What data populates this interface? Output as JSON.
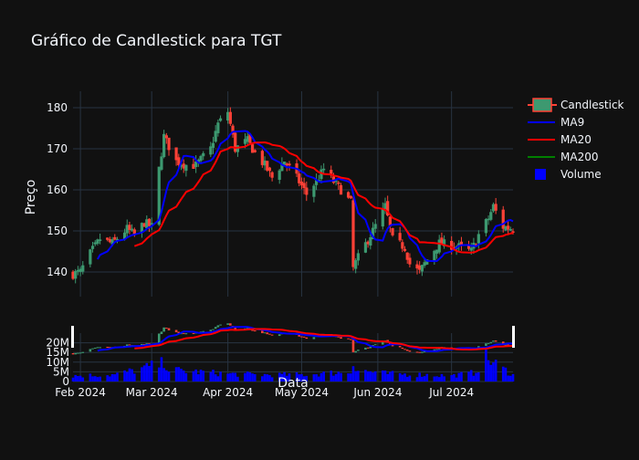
{
  "chart_data": {
    "type": "candlestick",
    "title": "Gráfico de Candlestick para TGT",
    "xlabel": "Data",
    "ylabel": "Preço",
    "x_range": [
      "2024-01-29",
      "2024-07-26"
    ],
    "price_ylim": [
      134,
      184
    ],
    "price_ticks": [
      140,
      150,
      160,
      170,
      180
    ],
    "volume_ylim": [
      0,
      25000000
    ],
    "volume_ticks": [
      0,
      5000000,
      10000000,
      15000000,
      20000000
    ],
    "volume_tick_labels": [
      "0",
      "5M",
      "10M",
      "15M",
      "20M"
    ],
    "x_ticks": [
      {
        "date": "2024-02-01",
        "label": "Feb 2024"
      },
      {
        "date": "2024-03-01",
        "label": "Mar 2024"
      },
      {
        "date": "2024-04-01",
        "label": "Apr 2024"
      },
      {
        "date": "2024-05-01",
        "label": "May 2024"
      },
      {
        "date": "2024-06-01",
        "label": "Jun 2024"
      },
      {
        "date": "2024-07-01",
        "label": "Jul 2024"
      }
    ],
    "grid": true,
    "legend_position": "top-right",
    "legend": [
      {
        "name": "Candlestick",
        "symbol": "candle"
      },
      {
        "name": "MA9",
        "symbol": "line",
        "color": "#0000ff"
      },
      {
        "name": "MA20",
        "symbol": "line",
        "color": "#ff0000"
      },
      {
        "name": "MA200",
        "symbol": "line",
        "color": "#008000"
      },
      {
        "name": "Volume",
        "symbol": "square",
        "color": "#0000ff"
      }
    ],
    "colors": {
      "increasing": "#3d9970",
      "decreasing": "#ff4136",
      "ma9": "#0000ff",
      "ma20": "#ff0000",
      "volume": "#0000ff"
    },
    "anchor_points": [
      [
        "2024-01-29",
        139.5
      ],
      [
        "2024-02-01",
        140.0
      ],
      [
        "2024-02-05",
        144.5
      ],
      [
        "2024-02-09",
        148.0
      ],
      [
        "2024-02-14",
        147.0
      ],
      [
        "2024-02-20",
        150.5
      ],
      [
        "2024-02-23",
        149.0
      ],
      [
        "2024-02-27",
        152.0
      ],
      [
        "2024-03-01",
        151.0
      ],
      [
        "2024-03-04",
        165.0
      ],
      [
        "2024-03-06",
        173.0
      ],
      [
        "2024-03-11",
        167.0
      ],
      [
        "2024-03-15",
        166.0
      ],
      [
        "2024-03-19",
        166.0
      ],
      [
        "2024-03-25",
        170.0
      ],
      [
        "2024-03-28",
        176.0
      ],
      [
        "2024-04-01",
        179.0
      ],
      [
        "2024-04-04",
        170.0
      ],
      [
        "2024-04-09",
        172.0
      ],
      [
        "2024-04-12",
        169.0
      ],
      [
        "2024-04-16",
        166.0
      ],
      [
        "2024-04-19",
        163.0
      ],
      [
        "2024-04-24",
        167.0
      ],
      [
        "2024-04-29",
        163.0
      ],
      [
        "2024-05-03",
        159.0
      ],
      [
        "2024-05-07",
        162.0
      ],
      [
        "2024-05-10",
        165.0
      ],
      [
        "2024-05-14",
        162.0
      ],
      [
        "2024-05-17",
        160.0
      ],
      [
        "2024-05-21",
        157.0
      ],
      [
        "2024-05-22",
        141.0
      ],
      [
        "2024-05-24",
        143.5
      ],
      [
        "2024-05-30",
        150.0
      ],
      [
        "2024-06-04",
        156.0
      ],
      [
        "2024-06-07",
        148.0
      ],
      [
        "2024-06-12",
        146.0
      ],
      [
        "2024-06-14",
        142.0
      ],
      [
        "2024-06-18",
        140.0
      ],
      [
        "2024-06-21",
        143.0
      ],
      [
        "2024-06-26",
        147.0
      ],
      [
        "2024-07-01",
        146.5
      ],
      [
        "2024-07-05",
        146.0
      ],
      [
        "2024-07-09",
        145.0
      ],
      [
        "2024-07-12",
        149.0
      ],
      [
        "2024-07-16",
        153.0
      ],
      [
        "2024-07-18",
        156.0
      ],
      [
        "2024-07-22",
        151.0
      ],
      [
        "2024-07-26",
        150.5
      ]
    ],
    "volume_points": [
      [
        "2024-01-29",
        3000000
      ],
      [
        "2024-02-15",
        3500000
      ],
      [
        "2024-03-05",
        9000000
      ],
      [
        "2024-03-06",
        11000000
      ],
      [
        "2024-03-08",
        6000000
      ],
      [
        "2024-04-01",
        4000000
      ],
      [
        "2024-04-15",
        3500000
      ],
      [
        "2024-05-01",
        3500000
      ],
      [
        "2024-05-21",
        5000000
      ],
      [
        "2024-05-22",
        12000000
      ],
      [
        "2024-05-23",
        6000000
      ],
      [
        "2024-06-05",
        4000000
      ],
      [
        "2024-06-20",
        3500000
      ],
      [
        "2024-07-01",
        3000000
      ],
      [
        "2024-07-10",
        4500000
      ],
      [
        "2024-07-15",
        12000000
      ],
      [
        "2024-07-26",
        3500000
      ]
    ]
  }
}
